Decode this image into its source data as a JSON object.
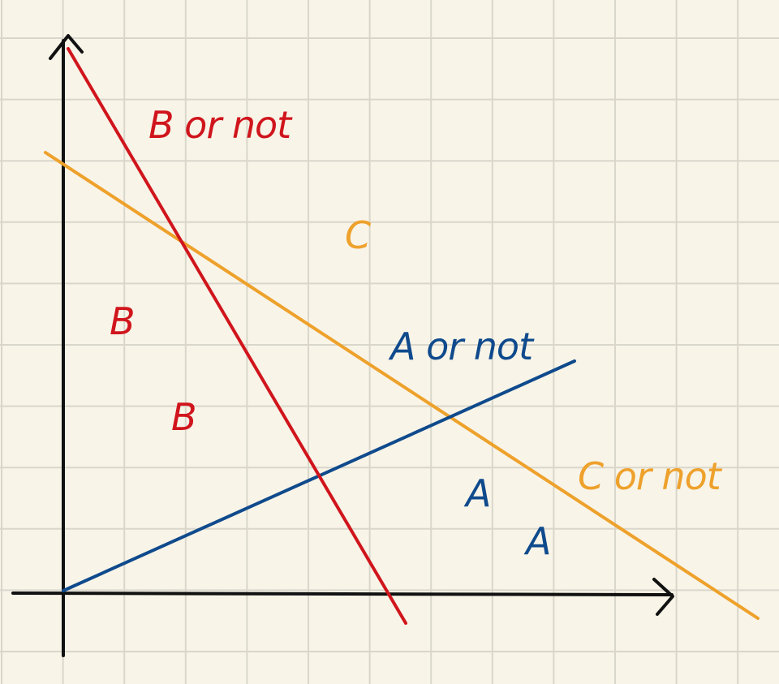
{
  "colors": {
    "paper": "#f8f4e8",
    "grid": "#d9d6cb",
    "axis": "#111111",
    "red": "#d0151c",
    "orange": "#eea12b",
    "blue": "#0f4a8c"
  },
  "labels": {
    "b_or_not": "B or not",
    "c_region": "C",
    "b_region_upper": "B",
    "b_region_lower": "B",
    "a_or_not": "A or not",
    "c_or_not": "C or not",
    "a_region_upper": "A",
    "a_region_lower": "A"
  }
}
